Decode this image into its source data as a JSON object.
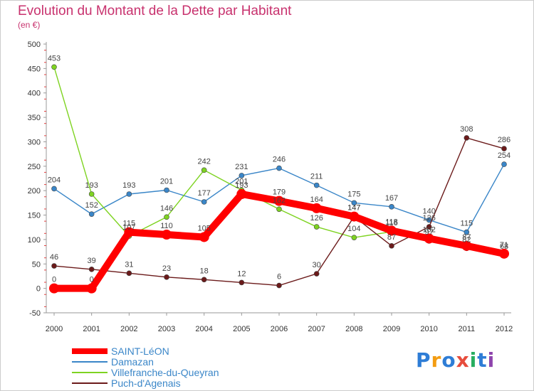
{
  "title": "Evolution du Montant de la Dette par Habitant",
  "subtitle": "(en €)",
  "logo": {
    "text": "Proxiti",
    "colors": [
      "#2e7dd6",
      "#f39c12",
      "#2e7dd6",
      "#e74c3c",
      "#27ae60",
      "#2e7dd6",
      "#8e44ad"
    ]
  },
  "chart_data": {
    "type": "line",
    "title": "Evolution du Montant de la Dette par Habitant",
    "subtitle": "(en €)",
    "xlabel": "",
    "ylabel": "",
    "x": [
      "2000",
      "2001",
      "2002",
      "2003",
      "2004",
      "2005",
      "2006",
      "2007",
      "2008",
      "2009",
      "2010",
      "2011",
      "2012"
    ],
    "ylim": [
      -50,
      500
    ],
    "yticks": [
      -50,
      0,
      50,
      100,
      150,
      200,
      250,
      300,
      350,
      400,
      450,
      500
    ],
    "grid": false,
    "legend_position": "bottom-left",
    "series": [
      {
        "name": "SAINT-LéON",
        "color": "#ff0000",
        "values": [
          0,
          0,
          115,
          110,
          105,
          193,
          179,
          164,
          147,
          118,
          102,
          87,
          71
        ],
        "labels": [
          "0",
          "0",
          "115",
          "110",
          "105",
          "193",
          "179",
          "164",
          "147",
          "118",
          "102",
          "87",
          "71"
        ]
      },
      {
        "name": "Damazan",
        "color": "#3a86c8",
        "values": [
          204,
          152,
          193,
          201,
          177,
          231,
          246,
          211,
          175,
          167,
          140,
          115,
          254
        ],
        "labels": [
          "204",
          "152",
          "193",
          "201",
          "177",
          "231",
          "246",
          "211",
          "175",
          "167",
          "140",
          "115",
          "254"
        ]
      },
      {
        "name": "Villefranche-du-Queyran",
        "color": "#7ed321",
        "values": [
          453,
          193,
          107,
          146,
          242,
          201,
          162,
          126,
          104,
          116,
          97,
          82,
          68
        ],
        "labels": [
          "453",
          "193",
          "107",
          "146",
          "242",
          "201",
          "162",
          "126",
          "104",
          "116",
          "97",
          "82",
          "68"
        ]
      },
      {
        "name": "Puch-d'Agenais",
        "color": "#6b1a1a",
        "values": [
          46,
          39,
          31,
          23,
          18,
          12,
          6,
          30,
          147,
          87,
          126,
          308,
          286
        ],
        "labels": [
          "46",
          "39",
          "31",
          "23",
          "18",
          "12",
          "6",
          "30",
          "147",
          "87",
          "126",
          "308",
          "286"
        ]
      }
    ]
  }
}
